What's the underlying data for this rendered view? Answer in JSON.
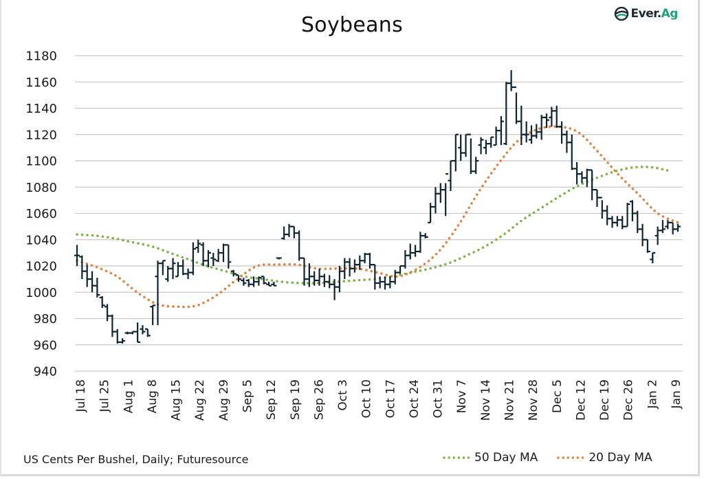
{
  "header": {
    "title": "Soybeans",
    "logo": {
      "icon": "ever-ag-logo-icon",
      "text_main": "Ever.",
      "text_accent": "Ag"
    }
  },
  "footer": {
    "source": "US Cents Per Bushel, Daily; Futuresource",
    "legend": [
      {
        "label": "50 Day MA",
        "color": "#7fb548",
        "style": "dotted"
      },
      {
        "label": "20 Day MA",
        "color": "#e0843f",
        "style": "dotted"
      }
    ]
  },
  "colors": {
    "bars": "#0e2431",
    "grid": "#c8c8c8",
    "ma50": "#7fb548",
    "ma20": "#e0843f",
    "logo_accent": "#1aa27e"
  },
  "chart_data": {
    "type": "ohlc",
    "title": "Soybeans",
    "xlabel": "",
    "ylabel": "US Cents Per Bushel",
    "ylim": [
      940,
      1180
    ],
    "yticks": [
      940,
      960,
      980,
      1000,
      1020,
      1040,
      1060,
      1080,
      1100,
      1120,
      1140,
      1160,
      1180
    ],
    "grid": true,
    "legend_position": "bottom-right",
    "xticks": [
      "Jul 18",
      "Jul 25",
      "Aug 1",
      "Aug 8",
      "Aug 15",
      "Aug 22",
      "Aug 29",
      "Sep 5",
      "Sep 12",
      "Sep 19",
      "Sep 26",
      "Oct 3",
      "Oct 10",
      "Oct 17",
      "Oct 24",
      "Oct 31",
      "Nov 7",
      "Nov 14",
      "Nov 21",
      "Nov 28",
      "Dec 5",
      "Dec 12",
      "Dec 19",
      "Dec 26",
      "Jan 2",
      "Jan 9"
    ],
    "bars_ohlc": [
      [
        1028,
        1036,
        1020,
        1028
      ],
      [
        1027,
        1028,
        1010,
        1016
      ],
      [
        1016,
        1021,
        1004,
        1010
      ],
      [
        1010,
        1016,
        1000,
        1005
      ],
      [
        1005,
        1011,
        996,
        998
      ],
      [
        996,
        997,
        988,
        990
      ],
      [
        989,
        991,
        978,
        982
      ],
      [
        982,
        983,
        966,
        970
      ],
      [
        970,
        972,
        961,
        962
      ],
      [
        962,
        965,
        961,
        963
      ],
      [
        969,
        970,
        968,
        969
      ],
      [
        969,
        970,
        968,
        970
      ],
      [
        970,
        977,
        962,
        962
      ],
      [
        972,
        975,
        968,
        970
      ],
      [
        972,
        972,
        966,
        967
      ],
      [
        989,
        990,
        975,
        990
      ],
      [
        1012,
        1024,
        975,
        1022
      ],
      [
        1022,
        1024,
        1013,
        1024
      ],
      [
        1010,
        1020,
        1008,
        1018
      ],
      [
        1018,
        1026,
        1010,
        1022
      ],
      [
        1012,
        1023,
        1012,
        1020
      ],
      [
        1020,
        1025,
        1013,
        1014
      ],
      [
        1014,
        1018,
        1010,
        1015
      ],
      [
        1015,
        1038,
        1013,
        1033
      ],
      [
        1034,
        1040,
        1030,
        1037
      ],
      [
        1036,
        1038,
        1020,
        1024
      ],
      [
        1024,
        1032,
        1019,
        1030
      ],
      [
        1026,
        1030,
        1020,
        1025
      ],
      [
        1024,
        1033,
        1023,
        1030
      ],
      [
        1030,
        1037,
        1023,
        1036
      ],
      [
        1036,
        1036,
        1018,
        1023
      ],
      [
        1016,
        1017,
        1012,
        1014
      ],
      [
        1013,
        1013,
        1008,
        1010
      ],
      [
        1009,
        1011,
        1005,
        1007
      ],
      [
        1009,
        1010,
        1004,
        1006
      ],
      [
        1006,
        1012,
        1004,
        1008
      ],
      [
        1008,
        1012,
        1005,
        1011
      ],
      [
        1012,
        1012,
        1006,
        1007
      ],
      [
        1006,
        1008,
        1005,
        1005
      ],
      [
        1006,
        1008,
        1005,
        1005
      ],
      [
        1026,
        1026,
        1025,
        1026
      ],
      [
        1041,
        1050,
        1040,
        1044
      ],
      [
        1044,
        1052,
        1042,
        1050
      ],
      [
        1050,
        1050,
        1041,
        1045
      ],
      [
        1045,
        1047,
        1024,
        1026
      ],
      [
        1026,
        1026,
        1005,
        1010
      ],
      [
        1010,
        1022,
        1004,
        1012
      ],
      [
        1012,
        1016,
        1005,
        1009
      ],
      [
        1009,
        1018,
        1005,
        1012
      ],
      [
        1012,
        1014,
        1004,
        1008
      ],
      [
        1008,
        1013,
        1003,
        1006
      ],
      [
        1006,
        1010,
        994,
        1004
      ],
      [
        1004,
        1020,
        1000,
        1016
      ],
      [
        1016,
        1026,
        1010,
        1023
      ],
      [
        1023,
        1026,
        1012,
        1018
      ],
      [
        1018,
        1025,
        1015,
        1021
      ],
      [
        1021,
        1028,
        1017,
        1024
      ],
      [
        1024,
        1030,
        1022,
        1029
      ],
      [
        1029,
        1030,
        1018,
        1021
      ],
      [
        1021,
        1021,
        1002,
        1007
      ],
      [
        1007,
        1012,
        1003,
        1008
      ],
      [
        1008,
        1012,
        1002,
        1006
      ],
      [
        1006,
        1012,
        1003,
        1008
      ],
      [
        1008,
        1017,
        1006,
        1015
      ],
      [
        1015,
        1020,
        1014,
        1020
      ],
      [
        1020,
        1032,
        1018,
        1028
      ],
      [
        1028,
        1037,
        1025,
        1030
      ],
      [
        1030,
        1036,
        1027,
        1031
      ],
      [
        1031,
        1046,
        1030,
        1043
      ],
      [
        1043,
        1045,
        1041,
        1042
      ],
      [
        1053,
        1068,
        1053,
        1065
      ],
      [
        1065,
        1080,
        1060,
        1075
      ],
      [
        1075,
        1083,
        1068,
        1078
      ],
      [
        1078,
        1083,
        1058,
        1090
      ],
      [
        1085,
        1100,
        1077,
        1100
      ],
      [
        1100,
        1120,
        1092,
        1120
      ],
      [
        1110,
        1120,
        1100,
        1106
      ],
      [
        1106,
        1120,
        1103,
        1120
      ],
      [
        1120,
        1117,
        1090,
        1092
      ],
      [
        1092,
        1103,
        1090,
        1100
      ],
      [
        1112,
        1118,
        1105,
        1116
      ],
      [
        1110,
        1116,
        1105,
        1113
      ],
      [
        1113,
        1118,
        1110,
        1118
      ],
      [
        1112,
        1126,
        1112,
        1123
      ],
      [
        1123,
        1134,
        1112,
        1130
      ],
      [
        1113,
        1160,
        1112,
        1159
      ],
      [
        1159,
        1169,
        1153,
        1156
      ],
      [
        1156,
        1152,
        1128,
        1130
      ],
      [
        1130,
        1142,
        1112,
        1120
      ],
      [
        1120,
        1130,
        1114,
        1120
      ],
      [
        1116,
        1127,
        1113,
        1119
      ],
      [
        1119,
        1128,
        1117,
        1122
      ],
      [
        1122,
        1135,
        1116,
        1133
      ],
      [
        1133,
        1136,
        1125,
        1131
      ],
      [
        1133,
        1141,
        1126,
        1138
      ],
      [
        1138,
        1142,
        1125,
        1126
      ],
      [
        1126,
        1130,
        1113,
        1120
      ],
      [
        1120,
        1123,
        1106,
        1114
      ],
      [
        1114,
        1120,
        1093,
        1094
      ],
      [
        1094,
        1099,
        1082,
        1090
      ],
      [
        1090,
        1092,
        1083,
        1087
      ],
      [
        1087,
        1094,
        1080,
        1093
      ],
      [
        1093,
        1093,
        1070,
        1078
      ],
      [
        1078,
        1078,
        1065,
        1072
      ],
      [
        1072,
        1070,
        1056,
        1062
      ],
      [
        1062,
        1066,
        1051,
        1056
      ],
      [
        1056,
        1058,
        1049,
        1053
      ],
      [
        1053,
        1058,
        1050,
        1055
      ],
      [
        1055,
        1058,
        1048,
        1050
      ],
      [
        1050,
        1068,
        1050,
        1067
      ],
      [
        1069,
        1070,
        1054,
        1060
      ],
      [
        1060,
        1062,
        1045,
        1048
      ],
      [
        1048,
        1052,
        1035,
        1040
      ],
      [
        1040,
        1040,
        1030,
        1031
      ],
      [
        1025,
        1030,
        1022,
        1030
      ],
      [
        1043,
        1050,
        1036,
        1047
      ],
      [
        1047,
        1055,
        1045,
        1048
      ],
      [
        1050,
        1055,
        1048,
        1053
      ],
      [
        1053,
        1053,
        1044,
        1048
      ],
      [
        1048,
        1052,
        1046,
        1050
      ]
    ],
    "series": [
      {
        "name": "50 Day MA",
        "values": [
          1044,
          1043,
          1041,
          1038,
          1035,
          1030,
          1025,
          1020,
          1016,
          1012,
          1010,
          1008,
          1007,
          1007,
          1008,
          1009,
          1010,
          1012,
          1015,
          1018,
          1022,
          1028,
          1035,
          1044,
          1055,
          1064,
          1073,
          1081,
          1087,
          1092,
          1095,
          1095,
          1092
        ]
      },
      {
        "name": "20 Day MA",
        "values": [
          1024,
          1019,
          1012,
          1000,
          991,
          989,
          990,
          998,
          1010,
          1020,
          1021,
          1021,
          1018,
          1018,
          1018,
          1015,
          1012,
          1018,
          1030,
          1050,
          1075,
          1097,
          1115,
          1124,
          1126,
          1122,
          1107,
          1090,
          1075,
          1060,
          1053
        ]
      }
    ]
  }
}
